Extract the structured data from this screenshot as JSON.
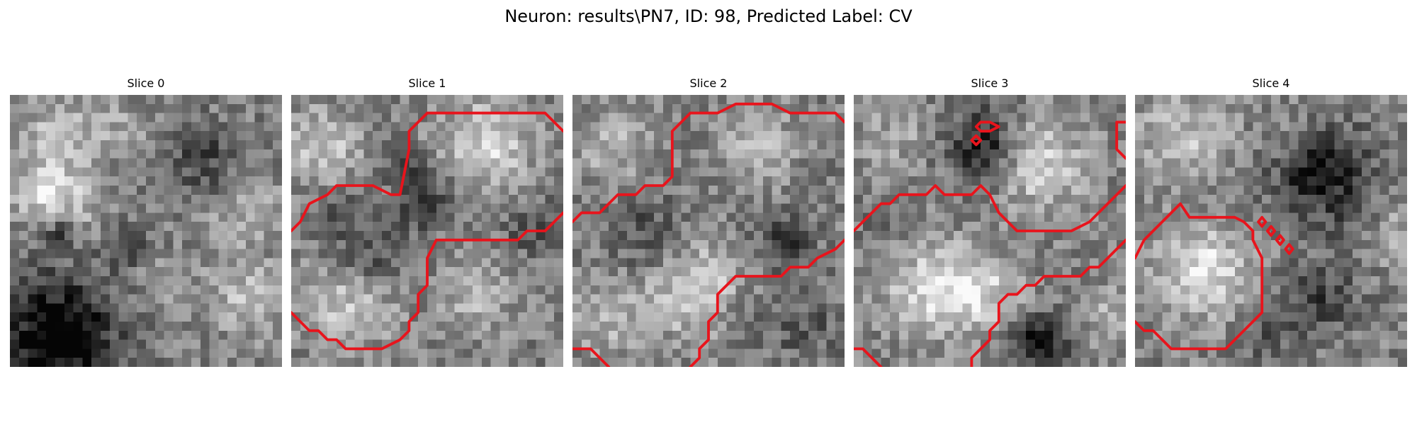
{
  "figure": {
    "title": "Neuron: results\\PN7, ID: 98, Predicted Label: CV",
    "contour_color": "#e8141c",
    "image_colormap": "grayscale",
    "grid_resolution": "30x30 pixel intensity slice",
    "panels": [
      {
        "title": "Slice 0",
        "seed": 101
      },
      {
        "title": "Slice 1",
        "seed": 202
      },
      {
        "title": "Slice 2",
        "seed": 303
      },
      {
        "title": "Slice 3",
        "seed": 404
      },
      {
        "title": "Slice 4",
        "seed": 505
      }
    ]
  }
}
